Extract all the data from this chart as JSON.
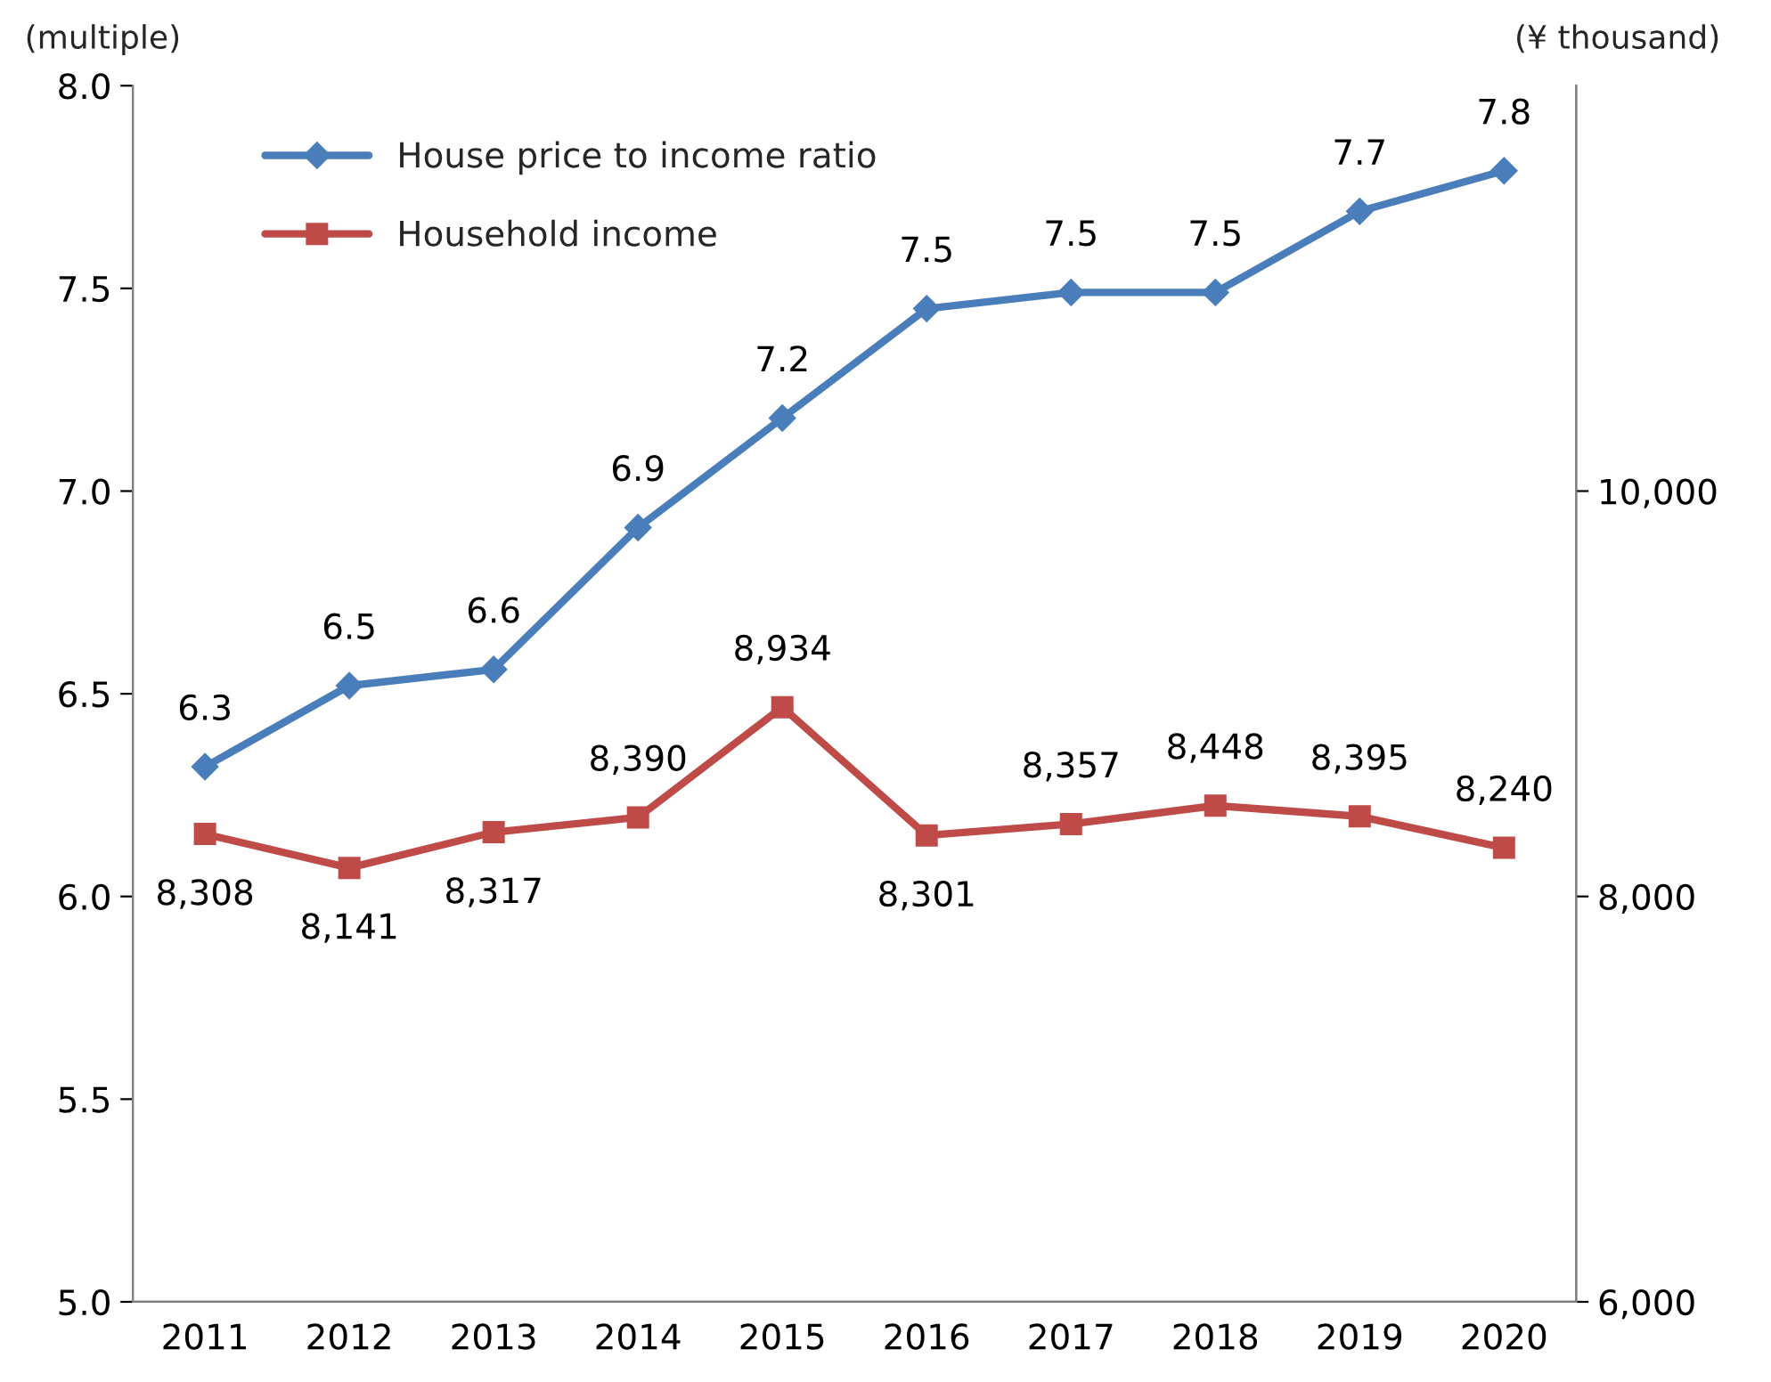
{
  "chart_data": {
    "type": "line",
    "categories": [
      "2011",
      "2012",
      "2013",
      "2014",
      "2015",
      "2016",
      "2017",
      "2018",
      "2019",
      "2020"
    ],
    "ylabel": "(multiple)",
    "y2label": "(¥ thousand)",
    "ylim": [
      5.0,
      8.0
    ],
    "yticks": [
      {
        "value": 5.0,
        "label": "5.0"
      },
      {
        "value": 5.5,
        "label": "5.5"
      },
      {
        "value": 6.0,
        "label": "6.0"
      },
      {
        "value": 6.5,
        "label": "6.5"
      },
      {
        "value": 7.0,
        "label": "7.0"
      },
      {
        "value": 7.5,
        "label": "7.5"
      },
      {
        "value": 8.0,
        "label": "8.0"
      }
    ],
    "y2lim": [
      6000,
      12000
    ],
    "y2ticks": [
      {
        "value": 6000,
        "label": "6,000"
      },
      {
        "value": 8000,
        "label": "8,000"
      },
      {
        "value": 10000,
        "label": "10,000"
      }
    ],
    "series": [
      {
        "name": "House price to income ratio",
        "color": "#4a7ebb",
        "marker": "diamond",
        "values": [
          6.32,
          6.52,
          6.56,
          6.91,
          7.18,
          7.45,
          7.49,
          7.49,
          7.69,
          7.79
        ],
        "value_labels": [
          "6.3",
          "6.5",
          "6.6",
          "6.9",
          "7.2",
          "7.5",
          "7.5",
          "7.5",
          "7.7",
          "7.8"
        ]
      },
      {
        "name": "Household income",
        "color": "#be4b48",
        "marker": "square",
        "axis": "y2",
        "values": [
          8308,
          8141,
          8317,
          8390,
          8934,
          8301,
          8357,
          8448,
          8395,
          8240
        ],
        "value_labels": [
          "8,308",
          "8,141",
          "8,317",
          "8,390",
          "8,934",
          "8,301",
          "8,357",
          "8,448",
          "8,395",
          "8,240"
        ]
      }
    ],
    "legend": "top left",
    "grid": false,
    "line_style": "solid"
  }
}
